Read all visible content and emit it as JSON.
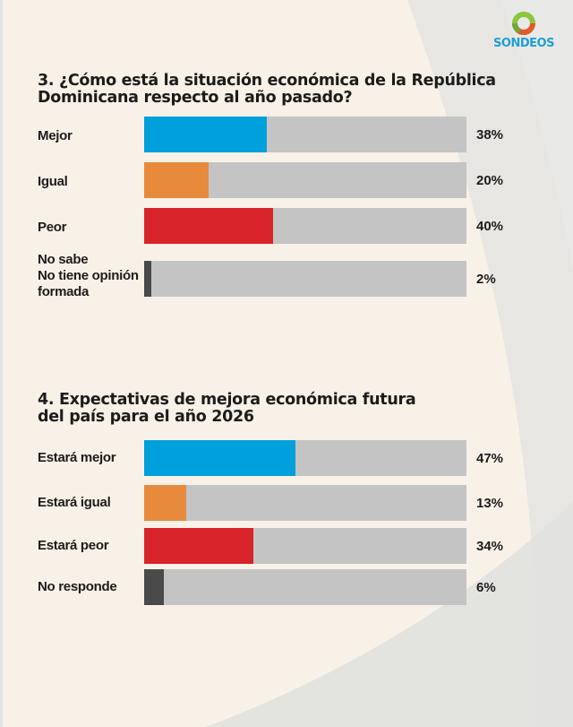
{
  "brand": {
    "name": "SONDEOS",
    "color": "#1e9fd8"
  },
  "colors": {
    "better": "#00a0dc",
    "same": "#e88a3c",
    "worse": "#d8232a",
    "neutral": "#4a4a4a",
    "track": "#c4c4c4"
  },
  "chart_data": [
    {
      "type": "bar",
      "orientation": "horizontal",
      "title": "3. ¿Cómo está la situación económica de la República Dominicana respecto al año pasado?",
      "title_lines": [
        "3. ¿Cómo está la situación económica de la República",
        "Dominicana respecto al año pasado?"
      ],
      "categories": [
        "Mejor",
        "Igual",
        "Peor",
        "No sabe / No tiene opinión formada"
      ],
      "category_lines": [
        [
          "Mejor"
        ],
        [
          "Igual"
        ],
        [
          "Peor"
        ],
        [
          "No sabe",
          "No tiene opinión",
          "formada"
        ]
      ],
      "values": [
        38,
        20,
        40,
        2
      ],
      "value_labels": [
        "38%",
        "20%",
        "40%",
        "2%"
      ],
      "color_keys": [
        "better",
        "same",
        "worse",
        "neutral"
      ],
      "xlim": [
        0,
        100
      ],
      "unit": "%"
    },
    {
      "type": "bar",
      "orientation": "horizontal",
      "title": "4. Expectativas de mejora económica futura del país para el año 2026",
      "title_lines": [
        "4. Expectativas de mejora económica futura",
        "del país para el año 2026"
      ],
      "categories": [
        "Estará mejor",
        "Estará igual",
        "Estará peor",
        "No responde"
      ],
      "category_lines": [
        [
          "Estará mejor"
        ],
        [
          "Estará igual"
        ],
        [
          "Estará peor"
        ],
        [
          "No responde"
        ]
      ],
      "values": [
        47,
        13,
        34,
        6
      ],
      "value_labels": [
        "47%",
        "13%",
        "34%",
        "6%"
      ],
      "color_keys": [
        "better",
        "same",
        "worse",
        "neutral"
      ],
      "xlim": [
        0,
        100
      ],
      "unit": "%"
    }
  ]
}
